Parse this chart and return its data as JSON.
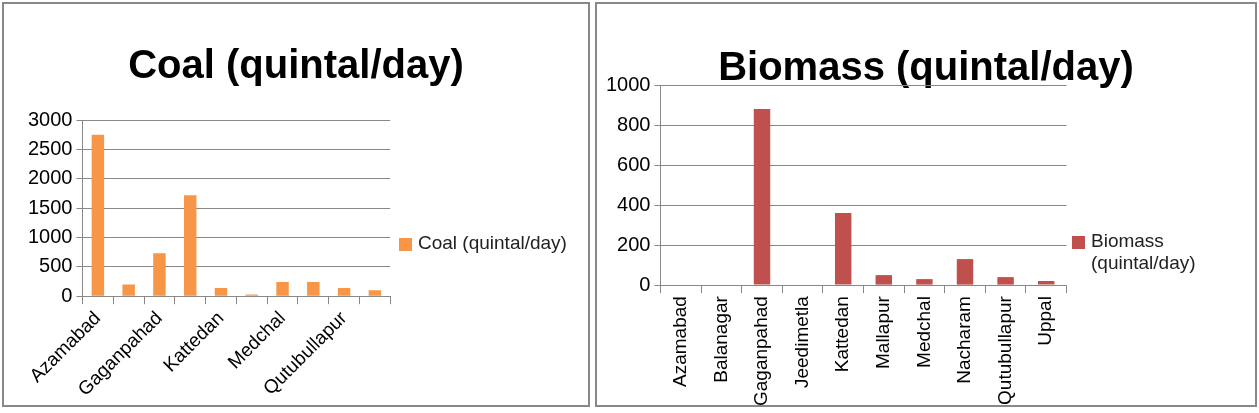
{
  "chart_data": [
    {
      "type": "bar",
      "title": "Coal (quintal/day)",
      "categories": [
        "Azamabad",
        null,
        "Gaganpahad",
        null,
        "Kattedan",
        null,
        "Medchal",
        null,
        "Qutubullapur",
        null
      ],
      "series": [
        {
          "name": "Coal (quintal/day)",
          "color": "#f79646",
          "values": [
            2750,
            200,
            730,
            1720,
            140,
            30,
            240,
            240,
            140,
            100
          ]
        }
      ],
      "ylim": [
        0,
        3000
      ],
      "yticks": [
        0,
        500,
        1000,
        1500,
        2000,
        2500,
        3000
      ],
      "grid": "y",
      "legend": "right"
    },
    {
      "type": "bar",
      "title": "Biomass (quintal/day)",
      "categories": [
        "Azamabad",
        "Balanagar",
        "Gaganpahad",
        "Jeedimetla",
        "Kattedan",
        "Mallapur",
        "Medchal",
        "Nacharam",
        "Qutubullapur",
        "Uppal"
      ],
      "series": [
        {
          "name": "Biomass (quintal/day)",
          "color": "#c0504d",
          "values": [
            0,
            0,
            880,
            0,
            360,
            50,
            30,
            130,
            40,
            20
          ]
        }
      ],
      "ylim": [
        0,
        1000
      ],
      "yticks": [
        0,
        200,
        400,
        600,
        800,
        1000
      ],
      "grid": "y",
      "legend": "right"
    }
  ]
}
